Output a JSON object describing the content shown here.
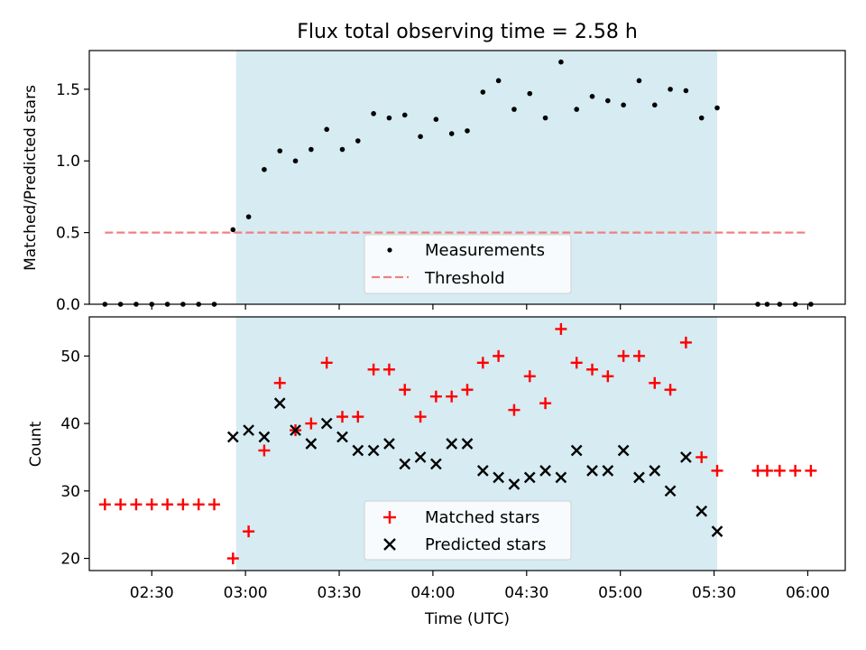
{
  "chart_data": [
    {
      "type": "scatter",
      "title": "Flux total observing time = 2.58 h",
      "xlabel": "",
      "ylabel": "Matched/Predicted stars",
      "ylim": [
        0,
        1.77
      ],
      "yticks": [
        "0.0",
        "0.5",
        "1.0",
        "1.5"
      ],
      "shaded_interval": [
        "02:57",
        "05:31"
      ],
      "legend": {
        "placement": "lower-center",
        "entries": [
          "Measurements",
          "Threshold"
        ]
      },
      "series": [
        {
          "name": "Measurements",
          "x": [
            "02:15",
            "02:20",
            "02:25",
            "02:30",
            "02:35",
            "02:40",
            "02:45",
            "02:50",
            "02:56",
            "03:01",
            "03:06",
            "03:11",
            "03:16",
            "03:21",
            "03:26",
            "03:31",
            "03:36",
            "03:41",
            "03:46",
            "03:51",
            "03:56",
            "04:01",
            "04:06",
            "04:11",
            "04:16",
            "04:21",
            "04:26",
            "04:31",
            "04:36",
            "04:41",
            "04:46",
            "04:51",
            "04:56",
            "05:01",
            "05:06",
            "05:11",
            "05:16",
            "05:21",
            "05:26",
            "05:31",
            "05:44",
            "05:47",
            "05:51",
            "05:56",
            "06:01"
          ],
          "y": [
            0,
            0,
            0,
            0,
            0,
            0,
            0,
            0,
            0.52,
            0.61,
            0.94,
            1.07,
            1.0,
            1.08,
            1.22,
            1.08,
            1.14,
            1.33,
            1.3,
            1.32,
            1.17,
            1.29,
            1.19,
            1.21,
            1.48,
            1.56,
            1.36,
            1.47,
            1.3,
            1.69,
            1.36,
            1.45,
            1.42,
            1.39,
            1.56,
            1.39,
            1.5,
            1.49,
            1.3,
            1.37,
            0,
            0,
            0,
            0,
            0
          ]
        },
        {
          "name": "Threshold",
          "type": "line",
          "x": [
            "02:15",
            "06:00"
          ],
          "y": [
            0.5,
            0.5
          ]
        }
      ],
      "colors": {
        "measurements": "#000000",
        "threshold": "#f08080",
        "shade": "#add8e6"
      }
    },
    {
      "type": "scatter",
      "title": "",
      "xlabel": "Time (UTC)",
      "ylabel": "Count",
      "ylim": [
        18.2,
        55.8
      ],
      "yticks": [
        "20",
        "30",
        "40",
        "50"
      ],
      "xticks": [
        "02:30",
        "03:00",
        "03:30",
        "04:00",
        "04:30",
        "05:00",
        "05:30",
        "06:00"
      ],
      "xlim": [
        "02:10",
        "06:12"
      ],
      "shaded_interval": [
        "02:57",
        "05:31"
      ],
      "legend": {
        "placement": "lower-center",
        "entries": [
          "Matched stars",
          "Predicted stars"
        ]
      },
      "series": [
        {
          "name": "Matched stars",
          "marker": "+",
          "x": [
            "02:15",
            "02:20",
            "02:25",
            "02:30",
            "02:35",
            "02:40",
            "02:45",
            "02:50",
            "02:56",
            "03:01",
            "03:06",
            "03:11",
            "03:16",
            "03:21",
            "03:26",
            "03:31",
            "03:36",
            "03:41",
            "03:46",
            "03:51",
            "03:56",
            "04:01",
            "04:06",
            "04:11",
            "04:16",
            "04:21",
            "04:26",
            "04:31",
            "04:36",
            "04:41",
            "04:46",
            "04:51",
            "04:56",
            "05:01",
            "05:06",
            "05:11",
            "05:16",
            "05:21",
            "05:26",
            "05:31",
            "05:44",
            "05:47",
            "05:51",
            "05:56",
            "06:01"
          ],
          "y": [
            28,
            28,
            28,
            28,
            28,
            28,
            28,
            28,
            20,
            24,
            36,
            46,
            39,
            40,
            49,
            41,
            41,
            48,
            48,
            45,
            41,
            44,
            44,
            45,
            49,
            50,
            42,
            47,
            43,
            54,
            49,
            48,
            47,
            50,
            50,
            46,
            45,
            52,
            35,
            33,
            33,
            33,
            33,
            33,
            33
          ]
        },
        {
          "name": "Predicted stars",
          "marker": "x",
          "x": [
            "02:56",
            "03:01",
            "03:06",
            "03:11",
            "03:16",
            "03:21",
            "03:26",
            "03:31",
            "03:36",
            "03:41",
            "03:46",
            "03:51",
            "03:56",
            "04:01",
            "04:06",
            "04:11",
            "04:16",
            "04:21",
            "04:26",
            "04:31",
            "04:36",
            "04:41",
            "04:46",
            "04:51",
            "04:56",
            "05:01",
            "05:06",
            "05:11",
            "05:16",
            "05:21",
            "05:26",
            "05:31"
          ],
          "y": [
            38,
            39,
            38,
            43,
            39,
            37,
            40,
            38,
            36,
            36,
            37,
            34,
            35,
            34,
            37,
            37,
            33,
            32,
            31,
            32,
            33,
            32,
            36,
            33,
            33,
            36,
            32,
            33,
            30,
            35,
            27,
            24
          ]
        }
      ],
      "colors": {
        "matched": "#ff0000",
        "predicted": "#000000",
        "shade": "#add8e6"
      }
    }
  ]
}
